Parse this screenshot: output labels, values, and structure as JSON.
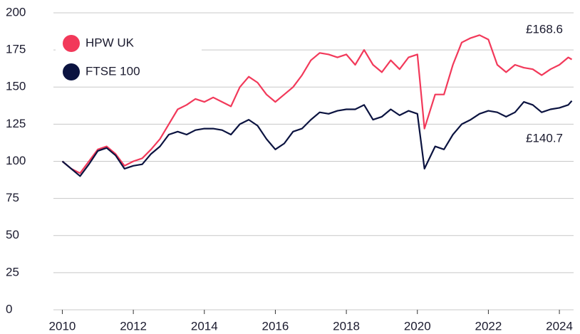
{
  "chart_data": {
    "type": "line",
    "x": [
      2010.0,
      2010.25,
      2010.5,
      2010.75,
      2011.0,
      2011.25,
      2011.5,
      2011.75,
      2012.0,
      2012.25,
      2012.5,
      2012.75,
      2013.0,
      2013.25,
      2013.5,
      2013.75,
      2014.0,
      2014.25,
      2014.5,
      2014.75,
      2015.0,
      2015.25,
      2015.5,
      2015.75,
      2016.0,
      2016.25,
      2016.5,
      2016.75,
      2017.0,
      2017.25,
      2017.5,
      2017.75,
      2018.0,
      2018.25,
      2018.5,
      2018.75,
      2019.0,
      2019.25,
      2019.5,
      2019.75,
      2020.0,
      2020.2,
      2020.5,
      2020.75,
      2021.0,
      2021.25,
      2021.5,
      2021.75,
      2022.0,
      2022.25,
      2022.5,
      2022.75,
      2023.0,
      2023.25,
      2023.5,
      2023.75,
      2024.0,
      2024.25,
      2024.35
    ],
    "series": [
      {
        "name": "HPW UK",
        "color": "#f2395a",
        "values": [
          100,
          95,
          92,
          100,
          108,
          110,
          105,
          97,
          100,
          102,
          108,
          115,
          125,
          135,
          138,
          142,
          140,
          143,
          140,
          137,
          150,
          157,
          153,
          145,
          140,
          145,
          150,
          158,
          168,
          173,
          172,
          170,
          172,
          165,
          175,
          165,
          160,
          168,
          162,
          170,
          172,
          122,
          145,
          145,
          165,
          180,
          183,
          185,
          182,
          165,
          160,
          165,
          163,
          162,
          158,
          162,
          165,
          170,
          168.6
        ]
      },
      {
        "name": "FTSE 100",
        "color": "#0b1340",
        "values": [
          100,
          95,
          90,
          98,
          107,
          109,
          104,
          95,
          97,
          98,
          105,
          110,
          118,
          120,
          118,
          121,
          122,
          122,
          121,
          118,
          125,
          128,
          124,
          115,
          108,
          112,
          120,
          122,
          128,
          133,
          132,
          134,
          135,
          135,
          138,
          128,
          130,
          135,
          131,
          134,
          132,
          95,
          110,
          108,
          118,
          125,
          128,
          132,
          134,
          133,
          130,
          133,
          140,
          138,
          133,
          135,
          136,
          138,
          140.7
        ]
      }
    ],
    "annotations": [
      "£168.6",
      "£140.7"
    ],
    "xlim": [
      2009.75,
      2024.4
    ],
    "xticks": [
      2010,
      2012,
      2014,
      2016,
      2018,
      2020,
      2022,
      2024
    ],
    "ylim": [
      0,
      200
    ],
    "yticks": [
      0,
      25,
      50,
      75,
      100,
      125,
      150,
      175,
      200
    ],
    "grid": true,
    "legend": "top-left"
  }
}
